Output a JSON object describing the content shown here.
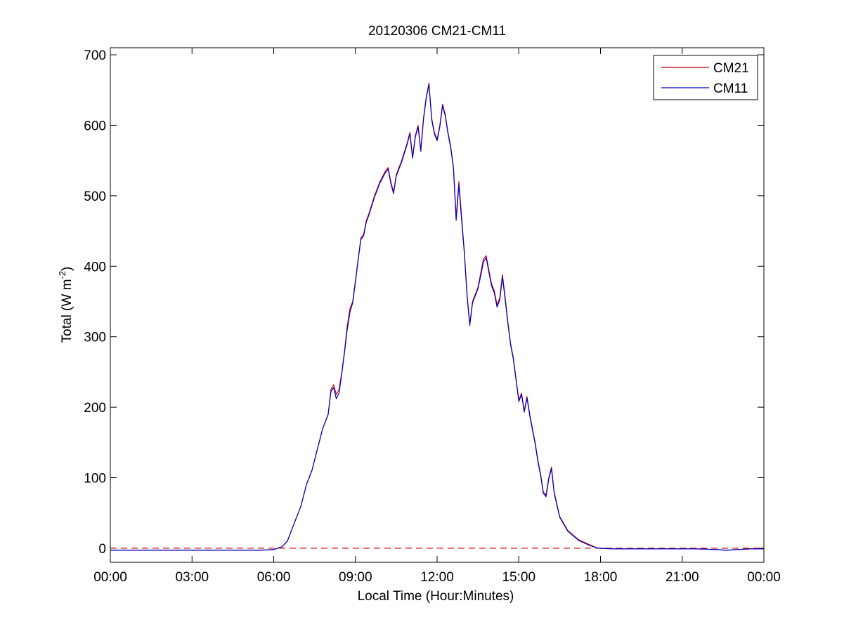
{
  "chart_data": {
    "type": "line",
    "title": "20120306 CM21-CM11",
    "xlabel": "Local Time (Hour:Minutes)",
    "ylabel": {
      "main": "Total (W m",
      "sup": "-2",
      "close": ")"
    },
    "xlim": [
      0,
      24
    ],
    "ylim": [
      -20,
      710
    ],
    "x_tick_labels": [
      "00:00",
      "03:00",
      "06:00",
      "09:00",
      "12:00",
      "15:00",
      "18:00",
      "21:00",
      "00:00"
    ],
    "x_tick_values": [
      0,
      3,
      6,
      9,
      12,
      15,
      18,
      21,
      24
    ],
    "y_tick_labels": [
      "0",
      "100",
      "200",
      "300",
      "400",
      "500",
      "600",
      "700"
    ],
    "y_tick_values": [
      0,
      100,
      200,
      300,
      400,
      500,
      600,
      700
    ],
    "grid": false,
    "legend_position": "top-right",
    "reference_line": {
      "y": 0,
      "style": "dashed",
      "color": "#cc0000"
    },
    "series": [
      {
        "name": "CM21",
        "color": "#cc0000",
        "points": [
          [
            0.0,
            -3
          ],
          [
            3.0,
            -3
          ],
          [
            5.5,
            -3
          ],
          [
            6.0,
            -2
          ],
          [
            6.3,
            2
          ],
          [
            6.5,
            10
          ],
          [
            6.7,
            30
          ],
          [
            7.0,
            60
          ],
          [
            7.2,
            90
          ],
          [
            7.4,
            110
          ],
          [
            7.6,
            140
          ],
          [
            7.8,
            170
          ],
          [
            8.0,
            190
          ],
          [
            8.1,
            225
          ],
          [
            8.2,
            232
          ],
          [
            8.3,
            218
          ],
          [
            8.4,
            225
          ],
          [
            8.5,
            250
          ],
          [
            8.6,
            280
          ],
          [
            8.7,
            315
          ],
          [
            8.8,
            340
          ],
          [
            8.9,
            350
          ],
          [
            9.0,
            380
          ],
          [
            9.1,
            410
          ],
          [
            9.2,
            440
          ],
          [
            9.3,
            445
          ],
          [
            9.4,
            465
          ],
          [
            9.5,
            475
          ],
          [
            9.7,
            500
          ],
          [
            9.9,
            520
          ],
          [
            10.1,
            535
          ],
          [
            10.2,
            540
          ],
          [
            10.3,
            520
          ],
          [
            10.4,
            505
          ],
          [
            10.5,
            530
          ],
          [
            10.7,
            550
          ],
          [
            10.9,
            575
          ],
          [
            11.0,
            590
          ],
          [
            11.1,
            555
          ],
          [
            11.2,
            585
          ],
          [
            11.3,
            600
          ],
          [
            11.4,
            565
          ],
          [
            11.5,
            610
          ],
          [
            11.6,
            640
          ],
          [
            11.7,
            660
          ],
          [
            11.8,
            610
          ],
          [
            11.9,
            590
          ],
          [
            12.0,
            580
          ],
          [
            12.1,
            600
          ],
          [
            12.2,
            630
          ],
          [
            12.3,
            615
          ],
          [
            12.4,
            590
          ],
          [
            12.5,
            570
          ],
          [
            12.6,
            540
          ],
          [
            12.7,
            470
          ],
          [
            12.8,
            520
          ],
          [
            12.9,
            470
          ],
          [
            13.0,
            420
          ],
          [
            13.1,
            360
          ],
          [
            13.2,
            318
          ],
          [
            13.3,
            350
          ],
          [
            13.4,
            360
          ],
          [
            13.5,
            370
          ],
          [
            13.6,
            390
          ],
          [
            13.7,
            410
          ],
          [
            13.8,
            415
          ],
          [
            13.9,
            395
          ],
          [
            14.0,
            375
          ],
          [
            14.1,
            365
          ],
          [
            14.2,
            345
          ],
          [
            14.3,
            355
          ],
          [
            14.4,
            388
          ],
          [
            14.5,
            355
          ],
          [
            14.6,
            320
          ],
          [
            14.7,
            290
          ],
          [
            14.8,
            270
          ],
          [
            14.9,
            240
          ],
          [
            15.0,
            210
          ],
          [
            15.1,
            220
          ],
          [
            15.2,
            195
          ],
          [
            15.3,
            215
          ],
          [
            15.4,
            190
          ],
          [
            15.5,
            170
          ],
          [
            15.6,
            150
          ],
          [
            15.7,
            125
          ],
          [
            15.8,
            105
          ],
          [
            15.9,
            80
          ],
          [
            16.0,
            75
          ],
          [
            16.1,
            100
          ],
          [
            16.2,
            115
          ],
          [
            16.3,
            80
          ],
          [
            16.5,
            45
          ],
          [
            16.8,
            25
          ],
          [
            17.2,
            12
          ],
          [
            17.6,
            5
          ],
          [
            17.9,
            0
          ],
          [
            18.5,
            -1
          ],
          [
            20.0,
            -1
          ],
          [
            21.5,
            -1
          ],
          [
            22.3,
            -2
          ],
          [
            22.6,
            -3
          ],
          [
            23.0,
            -2
          ],
          [
            23.5,
            -1
          ],
          [
            24.0,
            -1
          ]
        ]
      },
      {
        "name": "CM11",
        "color": "#0000cc",
        "points": [
          [
            0.0,
            -3
          ],
          [
            3.0,
            -3
          ],
          [
            5.5,
            -3
          ],
          [
            6.0,
            -2
          ],
          [
            6.3,
            2
          ],
          [
            6.5,
            10
          ],
          [
            6.7,
            30
          ],
          [
            7.0,
            60
          ],
          [
            7.2,
            90
          ],
          [
            7.4,
            110
          ],
          [
            7.6,
            140
          ],
          [
            7.8,
            170
          ],
          [
            8.0,
            190
          ],
          [
            8.1,
            222
          ],
          [
            8.2,
            228
          ],
          [
            8.3,
            212
          ],
          [
            8.4,
            220
          ],
          [
            8.5,
            248
          ],
          [
            8.6,
            278
          ],
          [
            8.7,
            310
          ],
          [
            8.8,
            335
          ],
          [
            8.9,
            348
          ],
          [
            9.0,
            378
          ],
          [
            9.1,
            408
          ],
          [
            9.2,
            438
          ],
          [
            9.3,
            443
          ],
          [
            9.4,
            463
          ],
          [
            9.5,
            473
          ],
          [
            9.7,
            498
          ],
          [
            9.9,
            518
          ],
          [
            10.1,
            533
          ],
          [
            10.2,
            538
          ],
          [
            10.3,
            518
          ],
          [
            10.4,
            503
          ],
          [
            10.5,
            528
          ],
          [
            10.7,
            548
          ],
          [
            10.9,
            573
          ],
          [
            11.0,
            588
          ],
          [
            11.1,
            553
          ],
          [
            11.2,
            583
          ],
          [
            11.3,
            598
          ],
          [
            11.4,
            563
          ],
          [
            11.5,
            608
          ],
          [
            11.6,
            638
          ],
          [
            11.7,
            658
          ],
          [
            11.8,
            608
          ],
          [
            11.9,
            588
          ],
          [
            12.0,
            578
          ],
          [
            12.1,
            598
          ],
          [
            12.2,
            628
          ],
          [
            12.3,
            613
          ],
          [
            12.4,
            588
          ],
          [
            12.5,
            568
          ],
          [
            12.6,
            538
          ],
          [
            12.7,
            465
          ],
          [
            12.8,
            515
          ],
          [
            12.9,
            465
          ],
          [
            13.0,
            418
          ],
          [
            13.1,
            358
          ],
          [
            13.2,
            316
          ],
          [
            13.3,
            348
          ],
          [
            13.4,
            358
          ],
          [
            13.5,
            368
          ],
          [
            13.6,
            386
          ],
          [
            13.7,
            406
          ],
          [
            13.8,
            412
          ],
          [
            13.9,
            392
          ],
          [
            14.0,
            372
          ],
          [
            14.1,
            362
          ],
          [
            14.2,
            342
          ],
          [
            14.3,
            352
          ],
          [
            14.4,
            385
          ],
          [
            14.5,
            352
          ],
          [
            14.6,
            318
          ],
          [
            14.7,
            288
          ],
          [
            14.8,
            268
          ],
          [
            14.9,
            238
          ],
          [
            15.0,
            208
          ],
          [
            15.1,
            218
          ],
          [
            15.2,
            193
          ],
          [
            15.3,
            213
          ],
          [
            15.4,
            188
          ],
          [
            15.5,
            168
          ],
          [
            15.6,
            148
          ],
          [
            15.7,
            123
          ],
          [
            15.8,
            103
          ],
          [
            15.9,
            78
          ],
          [
            16.0,
            73
          ],
          [
            16.1,
            98
          ],
          [
            16.2,
            113
          ],
          [
            16.3,
            78
          ],
          [
            16.5,
            44
          ],
          [
            16.8,
            24
          ],
          [
            17.2,
            11
          ],
          [
            17.6,
            4
          ],
          [
            17.9,
            0
          ],
          [
            18.5,
            -1
          ],
          [
            20.0,
            -1
          ],
          [
            21.5,
            -1
          ],
          [
            22.3,
            -2
          ],
          [
            22.6,
            -3
          ],
          [
            23.0,
            -2
          ],
          [
            23.5,
            -1
          ],
          [
            24.0,
            -1
          ]
        ]
      }
    ]
  }
}
